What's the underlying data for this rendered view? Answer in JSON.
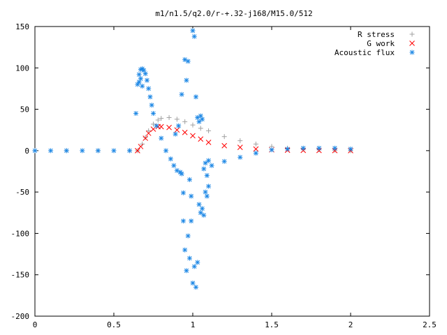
{
  "chart_data": {
    "type": "scatter",
    "title": "m1/n1.5/q2.0/r-+.32-j168/M15.0/512",
    "xlabel": "",
    "ylabel": "",
    "xlim": [
      0,
      2.5
    ],
    "ylim": [
      -200,
      150
    ],
    "x_ticks": [
      "0",
      "0.5",
      "1",
      "1.5",
      "2",
      "2.5"
    ],
    "y_ticks": [
      "150",
      "100",
      "50",
      "0",
      "-50",
      "-100",
      "-150",
      "-200"
    ],
    "grid": false,
    "legend_position": "top-right",
    "series": [
      {
        "name": "R stress",
        "marker": "plus",
        "color": "#a0a0a0",
        "x": [
          0.0,
          0.2,
          0.4,
          0.6,
          0.65,
          0.68,
          0.7,
          0.72,
          0.75,
          0.78,
          0.8,
          0.85,
          0.9,
          0.95,
          1.0,
          1.05,
          1.1,
          1.2,
          1.3,
          1.4,
          1.5,
          1.6,
          1.7,
          1.8,
          1.9,
          2.0
        ],
        "y": [
          0,
          0,
          0,
          0,
          0,
          8,
          16,
          24,
          32,
          37,
          39,
          40,
          38,
          35,
          31,
          27,
          24,
          17,
          12,
          8,
          5,
          3,
          2,
          1,
          0.5,
          0
        ]
      },
      {
        "name": "G work",
        "marker": "cross",
        "color": "#ff0000",
        "x": [
          0.65,
          0.67,
          0.7,
          0.72,
          0.75,
          0.78,
          0.8,
          0.85,
          0.9,
          0.95,
          1.0,
          1.05,
          1.1,
          1.2,
          1.3,
          1.4,
          1.5,
          1.6,
          1.7,
          1.8,
          1.9,
          2.0
        ],
        "y": [
          0,
          5,
          15,
          21,
          26,
          29,
          29,
          28,
          25,
          22,
          18,
          14,
          10,
          6,
          4,
          2,
          1,
          0.5,
          0.3,
          0.2,
          0.1,
          0
        ]
      },
      {
        "name": "Acoustic flux",
        "marker": "star",
        "color": "#1e88e5",
        "x": [
          0.0,
          0.1,
          0.2,
          0.3,
          0.4,
          0.5,
          0.6,
          0.64,
          0.65,
          0.66,
          0.67,
          0.68,
          0.69,
          0.7,
          0.71,
          0.72,
          0.73,
          0.74,
          0.75,
          0.77,
          0.8,
          0.83,
          0.86,
          0.88,
          0.9,
          0.92,
          0.93,
          0.94,
          0.95,
          0.96,
          0.97,
          0.98,
          0.99,
          1.0,
          1.01,
          1.02,
          1.03,
          1.04,
          1.05,
          1.06,
          1.07,
          1.08,
          1.09,
          1.1,
          1.12,
          1.2,
          1.3,
          1.4,
          1.5,
          1.6,
          1.7,
          1.8,
          1.9,
          2.0,
          0.89,
          0.91,
          0.93,
          0.94,
          0.95,
          0.96,
          0.97,
          0.98,
          0.99,
          1.0,
          1.01,
          1.02,
          1.03,
          1.04,
          1.05,
          1.06,
          1.07,
          1.08,
          1.09,
          1.1,
          0.66,
          0.67,
          0.68
        ],
        "y": [
          0,
          0,
          0,
          0,
          0,
          0,
          0,
          45,
          80,
          92,
          98,
          99,
          97,
          93,
          85,
          75,
          65,
          55,
          45,
          30,
          15,
          0,
          -10,
          -18,
          -24,
          -26,
          -28,
          -51,
          -120,
          -145,
          -103,
          -130,
          -85,
          -160,
          -140,
          -165,
          -135,
          -65,
          -75,
          -70,
          -78,
          -50,
          -30,
          -12,
          -18,
          -13,
          -8,
          -3,
          1,
          2,
          3,
          3,
          3,
          2,
          20,
          30,
          68,
          -85,
          110,
          85,
          108,
          -35,
          -55,
          145,
          138,
          65,
          40,
          35,
          42,
          38,
          -22,
          -15,
          -55,
          -43,
          83,
          87,
          78
        ]
      }
    ]
  }
}
